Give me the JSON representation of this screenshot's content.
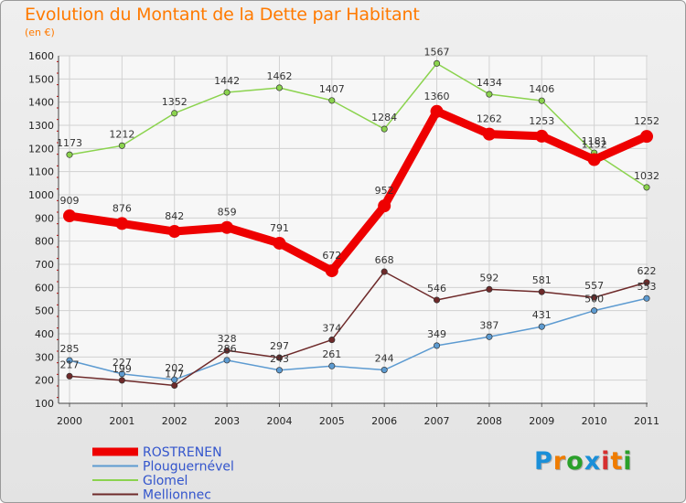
{
  "header": {
    "title": "Evolution du Montant de la Dette par Habitant",
    "unit": "(en €)"
  },
  "logo": {
    "letters": [
      "P",
      "r",
      "o",
      "x",
      "i",
      "t",
      "i"
    ],
    "colors": [
      "#1a8fd8",
      "#ef7c00",
      "#2aa02a",
      "#1a8fd8",
      "#d62f2f",
      "#ef7c00",
      "#2aa02a"
    ]
  },
  "chart_data": {
    "type": "line",
    "title": "Evolution du Montant de la Dette par Habitant",
    "ylabel": "(en €)",
    "xlabel": "",
    "x": [
      "2000",
      "2001",
      "2002",
      "2003",
      "2004",
      "2005",
      "2006",
      "2007",
      "2008",
      "2009",
      "2010",
      "2011"
    ],
    "ylim": [
      100,
      1600
    ],
    "yticks": [
      100,
      200,
      300,
      400,
      500,
      600,
      700,
      800,
      900,
      1000,
      1100,
      1200,
      1300,
      1400,
      1500,
      1600
    ],
    "grid": true,
    "legend_position": "bottom-left",
    "series": [
      {
        "name": "ROSTRENEN",
        "color": "#ee0000",
        "values": [
          909,
          876,
          842,
          859,
          791,
          672,
          952,
          1360,
          1262,
          1253,
          1152,
          1252
        ]
      },
      {
        "name": "Plouguernével",
        "color": "#5d9bd1",
        "values": [
          285,
          227,
          202,
          286,
          243,
          261,
          244,
          349,
          387,
          431,
          500,
          553
        ]
      },
      {
        "name": "Glomel",
        "color": "#8bd34e",
        "values": [
          1173,
          1212,
          1352,
          1442,
          1462,
          1407,
          1284,
          1567,
          1434,
          1406,
          1181,
          1032
        ]
      },
      {
        "name": "Mellionnec",
        "color": "#6e2a2a",
        "values": [
          217,
          199,
          177,
          328,
          297,
          374,
          668,
          546,
          592,
          581,
          557,
          622
        ]
      }
    ]
  }
}
